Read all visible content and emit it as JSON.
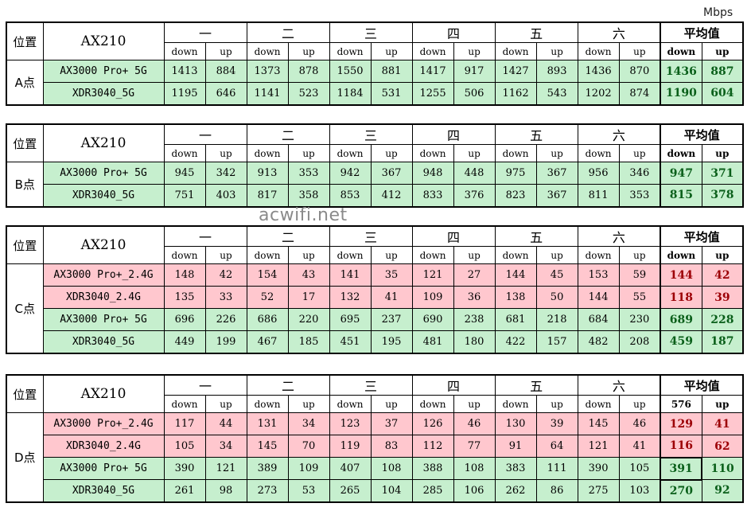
{
  "unit": "Mbps",
  "watermark": "acwifi.net",
  "headers": {
    "position": "位置",
    "model": "AX210",
    "days": [
      "一",
      "二",
      "三",
      "四",
      "五",
      "六"
    ],
    "average": "平均值",
    "down": "down",
    "up": "up"
  },
  "blocks": [
    {
      "point": "A点",
      "rows": [
        {
          "label": "AX3000 Pro+ 5G",
          "color": "green",
          "values": [
            "1413",
            "884",
            "1373",
            "878",
            "1550",
            "881",
            "1417",
            "917",
            "1427",
            "893",
            "1436",
            "870"
          ],
          "avg": [
            "1436",
            "887"
          ]
        },
        {
          "label": "XDR3040_5G",
          "color": "green",
          "values": [
            "1195",
            "646",
            "1141",
            "523",
            "1184",
            "531",
            "1255",
            "506",
            "1162",
            "543",
            "1202",
            "874"
          ],
          "avg": [
            "1190",
            "604"
          ]
        }
      ]
    },
    {
      "point": "B点",
      "rows": [
        {
          "label": "AX3000 Pro+ 5G",
          "color": "green",
          "values": [
            "945",
            "342",
            "913",
            "353",
            "942",
            "367",
            "948",
            "448",
            "975",
            "367",
            "956",
            "346"
          ],
          "avg": [
            "947",
            "371"
          ]
        },
        {
          "label": "XDR3040_5G",
          "color": "green",
          "values": [
            "751",
            "403",
            "817",
            "358",
            "853",
            "412",
            "833",
            "376",
            "823",
            "367",
            "811",
            "353"
          ],
          "avg": [
            "815",
            "378"
          ]
        }
      ]
    },
    {
      "point": "C点",
      "rows": [
        {
          "label": "AX3000 Pro+_2.4G",
          "color": "red",
          "values": [
            "148",
            "42",
            "154",
            "43",
            "141",
            "35",
            "121",
            "27",
            "144",
            "45",
            "153",
            "59"
          ],
          "avg": [
            "144",
            "42"
          ]
        },
        {
          "label": "XDR3040_2.4G",
          "color": "red",
          "values": [
            "135",
            "33",
            "52",
            "17",
            "132",
            "41",
            "109",
            "36",
            "138",
            "50",
            "144",
            "55"
          ],
          "avg": [
            "118",
            "39"
          ]
        },
        {
          "label": "AX3000 Pro+ 5G",
          "color": "green",
          "values": [
            "696",
            "226",
            "686",
            "220",
            "695",
            "237",
            "690",
            "238",
            "681",
            "218",
            "684",
            "230"
          ],
          "avg": [
            "689",
            "228"
          ]
        },
        {
          "label": "XDR3040_5G",
          "color": "green",
          "values": [
            "449",
            "199",
            "467",
            "185",
            "451",
            "195",
            "481",
            "180",
            "422",
            "157",
            "482",
            "208"
          ],
          "avg": [
            "459",
            "187"
          ]
        }
      ]
    },
    {
      "point": "D点",
      "avg_down_header": "576",
      "rows": [
        {
          "label": "AX3000 Pro+_2.4G",
          "color": "red",
          "values": [
            "117",
            "44",
            "131",
            "34",
            "123",
            "37",
            "126",
            "46",
            "130",
            "39",
            "145",
            "46"
          ],
          "avg": [
            "129",
            "41"
          ]
        },
        {
          "label": "XDR3040_2.4G",
          "color": "red",
          "values": [
            "105",
            "34",
            "145",
            "70",
            "119",
            "83",
            "112",
            "77",
            "91",
            "64",
            "121",
            "41"
          ],
          "avg": [
            "116",
            "62"
          ]
        },
        {
          "label": "AX3000 Pro+ 5G",
          "color": "green",
          "values": [
            "390",
            "121",
            "389",
            "109",
            "407",
            "108",
            "388",
            "108",
            "383",
            "111",
            "390",
            "105"
          ],
          "avg": [
            "391",
            "110"
          ]
        },
        {
          "label": "XDR3040_5G",
          "color": "green",
          "values": [
            "261",
            "98",
            "273",
            "53",
            "265",
            "104",
            "285",
            "106",
            "262",
            "86",
            "275",
            "103"
          ],
          "avg": [
            "270",
            "92"
          ]
        }
      ]
    }
  ]
}
